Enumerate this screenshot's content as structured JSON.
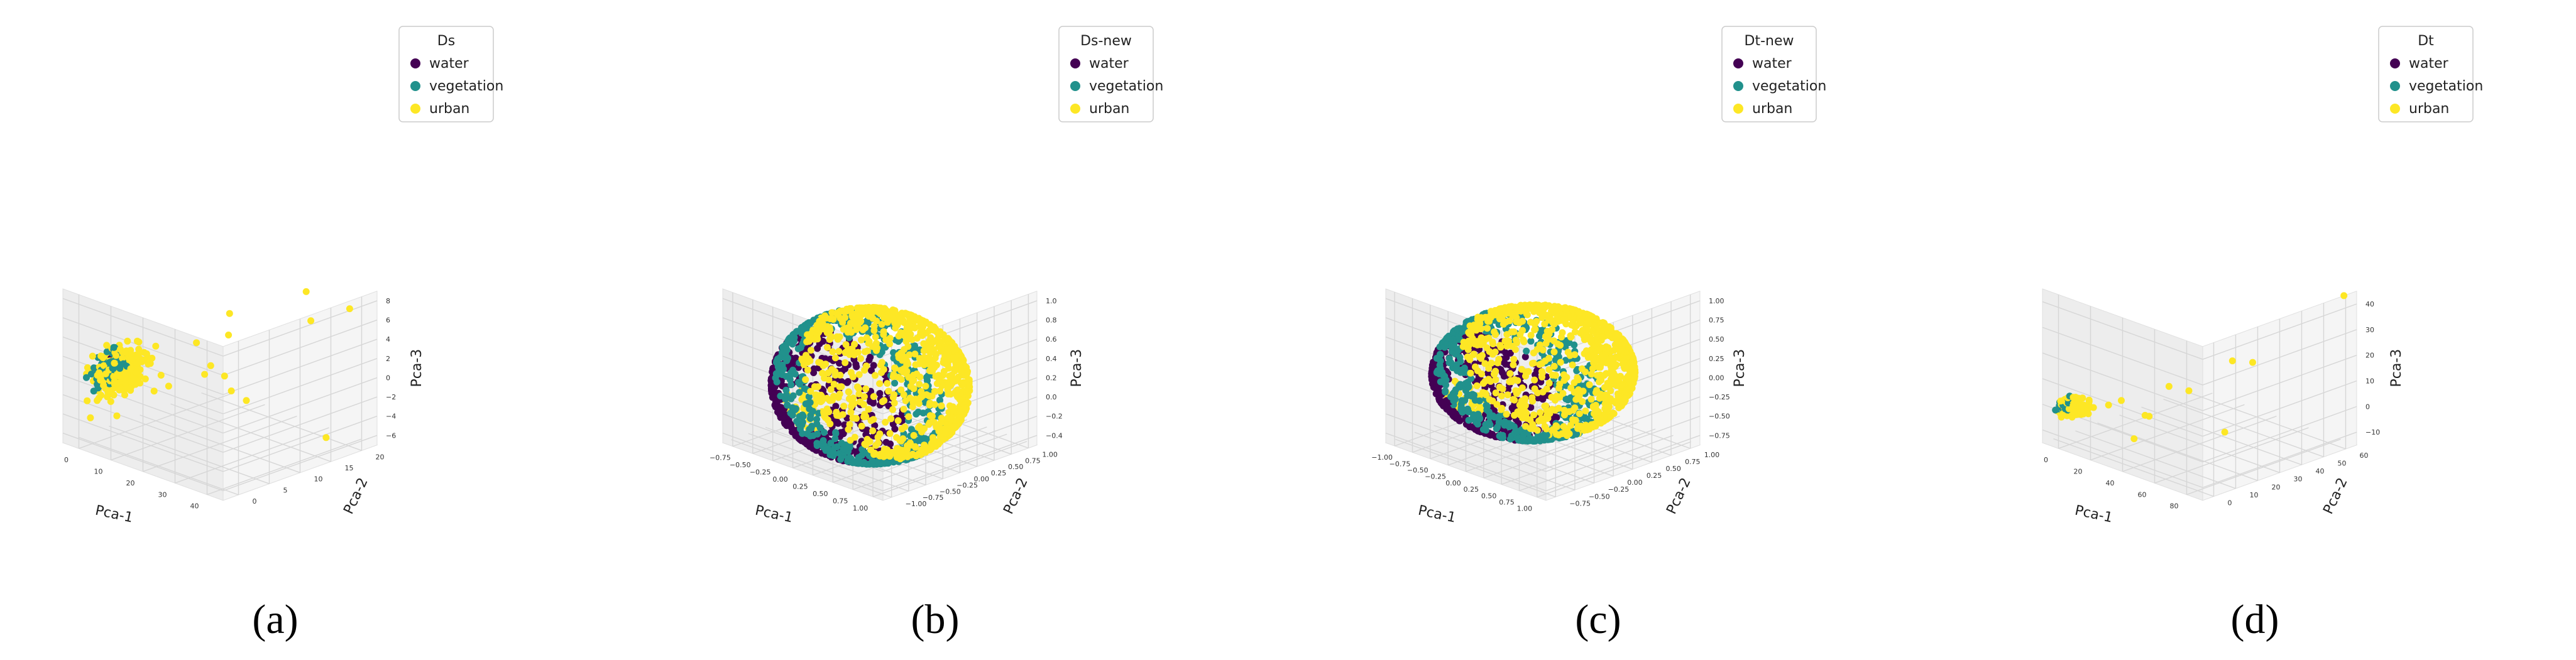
{
  "colors": {
    "water": "#440154",
    "vegetation": "#21918c",
    "urban": "#fde725",
    "pane": "#f2f2f2",
    "grid": "#d6d6d6"
  },
  "chart_data": [
    {
      "type": "scatter",
      "subtype": "3d",
      "caption": "(a)",
      "legend_title": "Ds",
      "legend": [
        "water",
        "vegetation",
        "urban"
      ],
      "xlabel": "Pca-1",
      "ylabel": "Pca-2",
      "zlabel": "Pca-3",
      "xlim": [
        -5,
        45
      ],
      "ylim": [
        -3,
        24
      ],
      "zlim": [
        -7,
        9
      ],
      "xticks": [
        "0",
        "10",
        "20",
        "30",
        "40"
      ],
      "yticks": [
        "0",
        "5",
        "10",
        "15",
        "20"
      ],
      "zticks": [
        "8",
        "6",
        "4",
        "2",
        "0",
        "−2",
        "−4",
        "−6"
      ],
      "clusters": [
        {
          "series": "urban",
          "center": [
            2,
            3,
            0
          ],
          "spread": [
            2.2,
            2,
            1.1
          ],
          "count": 320
        },
        {
          "series": "vegetation",
          "center": [
            -1,
            3,
            0
          ],
          "spread": [
            0.6,
            1.5,
            0.9
          ],
          "count": 60
        },
        {
          "series": "water",
          "center": [
            0.5,
            2,
            1
          ],
          "spread": [
            0.5,
            0.4,
            0.3
          ],
          "count": 6
        }
      ],
      "outliers": {
        "series": "urban",
        "x": [
          20,
          35,
          25,
          18,
          30,
          12,
          8,
          40,
          15,
          28,
          22,
          38,
          10,
          33
        ],
        "y": [
          12,
          18,
          5,
          10,
          20,
          6,
          3,
          22,
          15,
          8,
          14,
          19,
          12,
          4
        ],
        "z": [
          4,
          6,
          2,
          1,
          8,
          -1,
          3,
          7,
          5,
          0,
          -3,
          -6,
          2,
          3
        ]
      }
    },
    {
      "type": "scatter",
      "subtype": "3d",
      "caption": "(b)",
      "legend_title": "Ds-new",
      "legend": [
        "water",
        "vegetation",
        "urban"
      ],
      "xlabel": "Pca-1",
      "ylabel": "Pca-2",
      "zlabel": "Pca-3",
      "xlim": [
        -0.95,
        1.15
      ],
      "ylim": [
        -1.05,
        1.1
      ],
      "zlim": [
        -0.6,
        1.05
      ],
      "xticks": [
        "−0.75",
        "−0.50",
        "−0.25",
        "0.00",
        "0.25",
        "0.50",
        "0.75",
        "1.00"
      ],
      "yticks": [
        "−1.00",
        "−0.75",
        "−0.50",
        "−0.25",
        "0.00",
        "0.25",
        "0.50",
        "0.75",
        "1.00"
      ],
      "zticks": [
        "1.0",
        "0.8",
        "0.6",
        "0.4",
        "0.2",
        "0.0",
        "−0.2",
        "−0.4"
      ],
      "sphere": {
        "water": [
          -0.95,
          -0.45
        ],
        "vegetation": [
          -0.45,
          0.05
        ],
        "urban": [
          0.05,
          1.0
        ]
      }
    },
    {
      "type": "scatter",
      "subtype": "3d",
      "caption": "(c)",
      "legend_title": "Dt-new",
      "legend": [
        "water",
        "vegetation",
        "urban"
      ],
      "xlabel": "Pca-1",
      "ylabel": "Pca-2",
      "zlabel": "Pca-3",
      "xlim": [
        -1.05,
        1.1
      ],
      "ylim": [
        -0.9,
        1.1
      ],
      "zlim": [
        -0.95,
        1.05
      ],
      "xticks": [
        "−1.00",
        "−0.75",
        "−0.50",
        "−0.25",
        "0.00",
        "0.25",
        "0.50",
        "0.75",
        "1.00"
      ],
      "yticks": [
        "−0.75",
        "−0.50",
        "−0.25",
        "0.00",
        "0.25",
        "0.50",
        "0.75",
        "1.00"
      ],
      "zticks": [
        "1.00",
        "0.75",
        "0.50",
        "0.25",
        "0.00",
        "−0.25",
        "−0.50",
        "−0.75"
      ],
      "sphere": {
        "water": [
          -0.95,
          -0.5
        ],
        "vegetation": [
          -0.5,
          0.0
        ],
        "urban": [
          0.0,
          1.0
        ]
      }
    },
    {
      "type": "scatter",
      "subtype": "3d",
      "caption": "(d)",
      "legend_title": "Dt",
      "legend": [
        "water",
        "vegetation",
        "urban"
      ],
      "xlabel": "Pca-1",
      "ylabel": "Pca-2",
      "zlabel": "Pca-3",
      "xlim": [
        -5,
        95
      ],
      "ylim": [
        -3,
        62
      ],
      "zlim": [
        -12,
        42
      ],
      "xticks": [
        "0",
        "20",
        "40",
        "60",
        "80"
      ],
      "yticks": [
        "0",
        "10",
        "20",
        "30",
        "40",
        "50",
        "60"
      ],
      "zticks": [
        "40",
        "30",
        "20",
        "10",
        "0",
        "−10"
      ],
      "clusters": [
        {
          "series": "urban",
          "center": [
            4,
            4,
            0
          ],
          "spread": [
            3,
            2,
            1.2
          ],
          "count": 200
        },
        {
          "series": "vegetation",
          "center": [
            0,
            3,
            0
          ],
          "spread": [
            0.8,
            1.5,
            1.0
          ],
          "count": 35
        },
        {
          "series": "water",
          "center": [
            0,
            3,
            0.5
          ],
          "spread": [
            0.5,
            0.5,
            0.4
          ],
          "count": 6
        }
      ],
      "outliers": {
        "series": "urban",
        "x": [
          25,
          40,
          60,
          90,
          35,
          20,
          50,
          30,
          45,
          15,
          28,
          70
        ],
        "y": [
          10,
          20,
          30,
          60,
          15,
          8,
          40,
          12,
          25,
          5,
          18,
          35
        ],
        "z": [
          5,
          10,
          -5,
          40,
          0,
          3,
          15,
          -8,
          8,
          2,
          -2,
          20
        ]
      }
    }
  ]
}
